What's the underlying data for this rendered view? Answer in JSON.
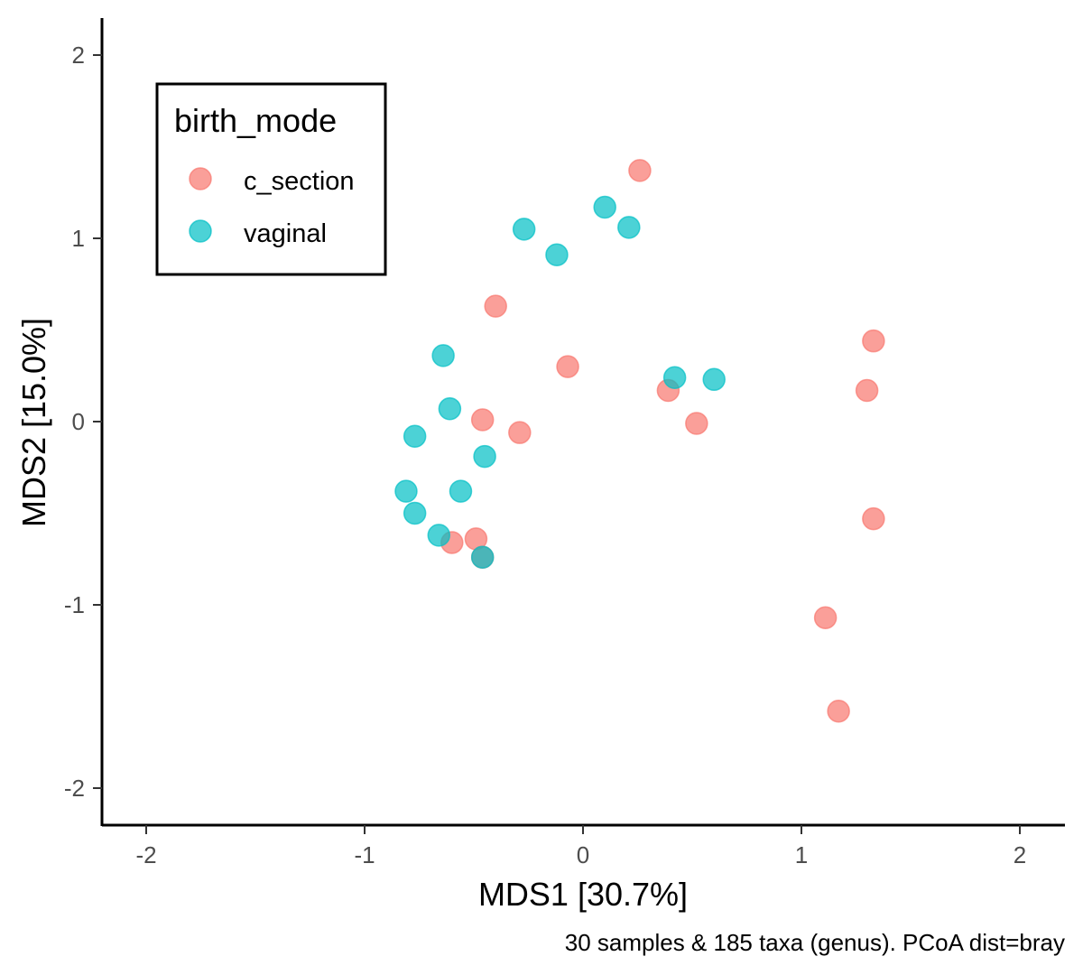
{
  "chart_data": {
    "type": "scatter",
    "xlabel": "MDS1 [30.7%]",
    "ylabel": "MDS2 [15.0%]",
    "caption": "30 samples & 185 taxa (genus). PCoA dist=bray",
    "xlim": [
      -2.2,
      2.2
    ],
    "ylim": [
      -2.2,
      2.2
    ],
    "xticks": [
      -2,
      -1,
      0,
      1,
      2
    ],
    "yticks": [
      -2,
      -1,
      0,
      1,
      2
    ],
    "xtick_labels": [
      "-2",
      "-1",
      "0",
      "1",
      "2"
    ],
    "ytick_labels": [
      "-2",
      "-1",
      "0",
      "1",
      "2"
    ],
    "grid": false,
    "legend": {
      "title": "birth_mode",
      "placement": "top-left"
    },
    "series": [
      {
        "name": "c_section",
        "color": "#F8766D",
        "points": [
          {
            "x": 0.26,
            "y": 1.37
          },
          {
            "x": -0.4,
            "y": 0.63
          },
          {
            "x": -0.07,
            "y": 0.3
          },
          {
            "x": 0.39,
            "y": 0.17
          },
          {
            "x": 0.52,
            "y": -0.01
          },
          {
            "x": -0.46,
            "y": 0.01
          },
          {
            "x": -0.29,
            "y": -0.06
          },
          {
            "x": -0.6,
            "y": -0.66
          },
          {
            "x": -0.49,
            "y": -0.64
          },
          {
            "x": -0.46,
            "y": -0.74
          },
          {
            "x": 1.33,
            "y": 0.44
          },
          {
            "x": 1.3,
            "y": 0.17
          },
          {
            "x": 1.33,
            "y": -0.53
          },
          {
            "x": 1.11,
            "y": -1.07
          },
          {
            "x": 1.17,
            "y": -1.58
          }
        ]
      },
      {
        "name": "vaginal",
        "color": "#00BFC4",
        "points": [
          {
            "x": 0.1,
            "y": 1.17
          },
          {
            "x": 0.21,
            "y": 1.06
          },
          {
            "x": -0.27,
            "y": 1.05
          },
          {
            "x": -0.12,
            "y": 0.91
          },
          {
            "x": -0.64,
            "y": 0.36
          },
          {
            "x": 0.42,
            "y": 0.24
          },
          {
            "x": 0.6,
            "y": 0.23
          },
          {
            "x": -0.61,
            "y": 0.07
          },
          {
            "x": -0.77,
            "y": -0.08
          },
          {
            "x": -0.45,
            "y": -0.19
          },
          {
            "x": -0.81,
            "y": -0.38
          },
          {
            "x": -0.56,
            "y": -0.38
          },
          {
            "x": -0.77,
            "y": -0.5
          },
          {
            "x": -0.66,
            "y": -0.62
          },
          {
            "x": -0.46,
            "y": -0.74
          }
        ]
      }
    ]
  }
}
